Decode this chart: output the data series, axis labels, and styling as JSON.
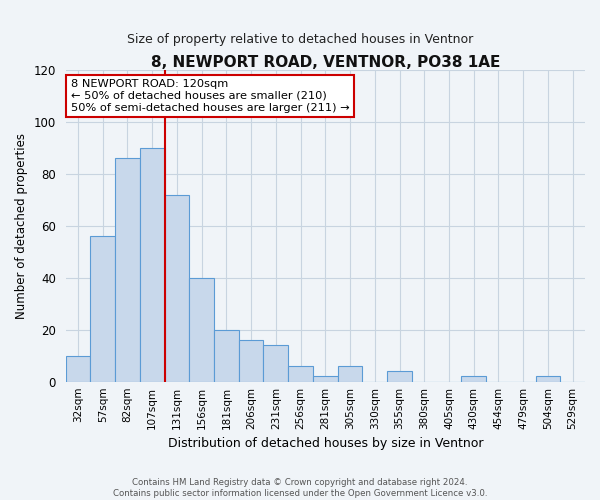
{
  "title": "8, NEWPORT ROAD, VENTNOR, PO38 1AE",
  "subtitle": "Size of property relative to detached houses in Ventnor",
  "xlabel": "Distribution of detached houses by size in Ventnor",
  "ylabel": "Number of detached properties",
  "bar_labels": [
    "32sqm",
    "57sqm",
    "82sqm",
    "107sqm",
    "131sqm",
    "156sqm",
    "181sqm",
    "206sqm",
    "231sqm",
    "256sqm",
    "281sqm",
    "305sqm",
    "330sqm",
    "355sqm",
    "380sqm",
    "405sqm",
    "430sqm",
    "454sqm",
    "479sqm",
    "504sqm",
    "529sqm"
  ],
  "bar_values": [
    10,
    56,
    86,
    90,
    72,
    40,
    20,
    16,
    14,
    6,
    2,
    6,
    0,
    4,
    0,
    0,
    2,
    0,
    0,
    2,
    0
  ],
  "bar_color": "#c8d8eb",
  "bar_edgecolor": "#5b9bd5",
  "ylim": [
    0,
    120
  ],
  "yticks": [
    0,
    20,
    40,
    60,
    80,
    100,
    120
  ],
  "property_label": "8 NEWPORT ROAD: 120sqm",
  "annotation_line1": "← 50% of detached houses are smaller (210)",
  "annotation_line2": "50% of semi-detached houses are larger (211) →",
  "vline_x_index": 3.5,
  "footer1": "Contains HM Land Registry data © Crown copyright and database right 2024.",
  "footer2": "Contains public sector information licensed under the Open Government Licence v3.0.",
  "bg_color": "#f0f4f8",
  "grid_color": "#c8d4e0"
}
